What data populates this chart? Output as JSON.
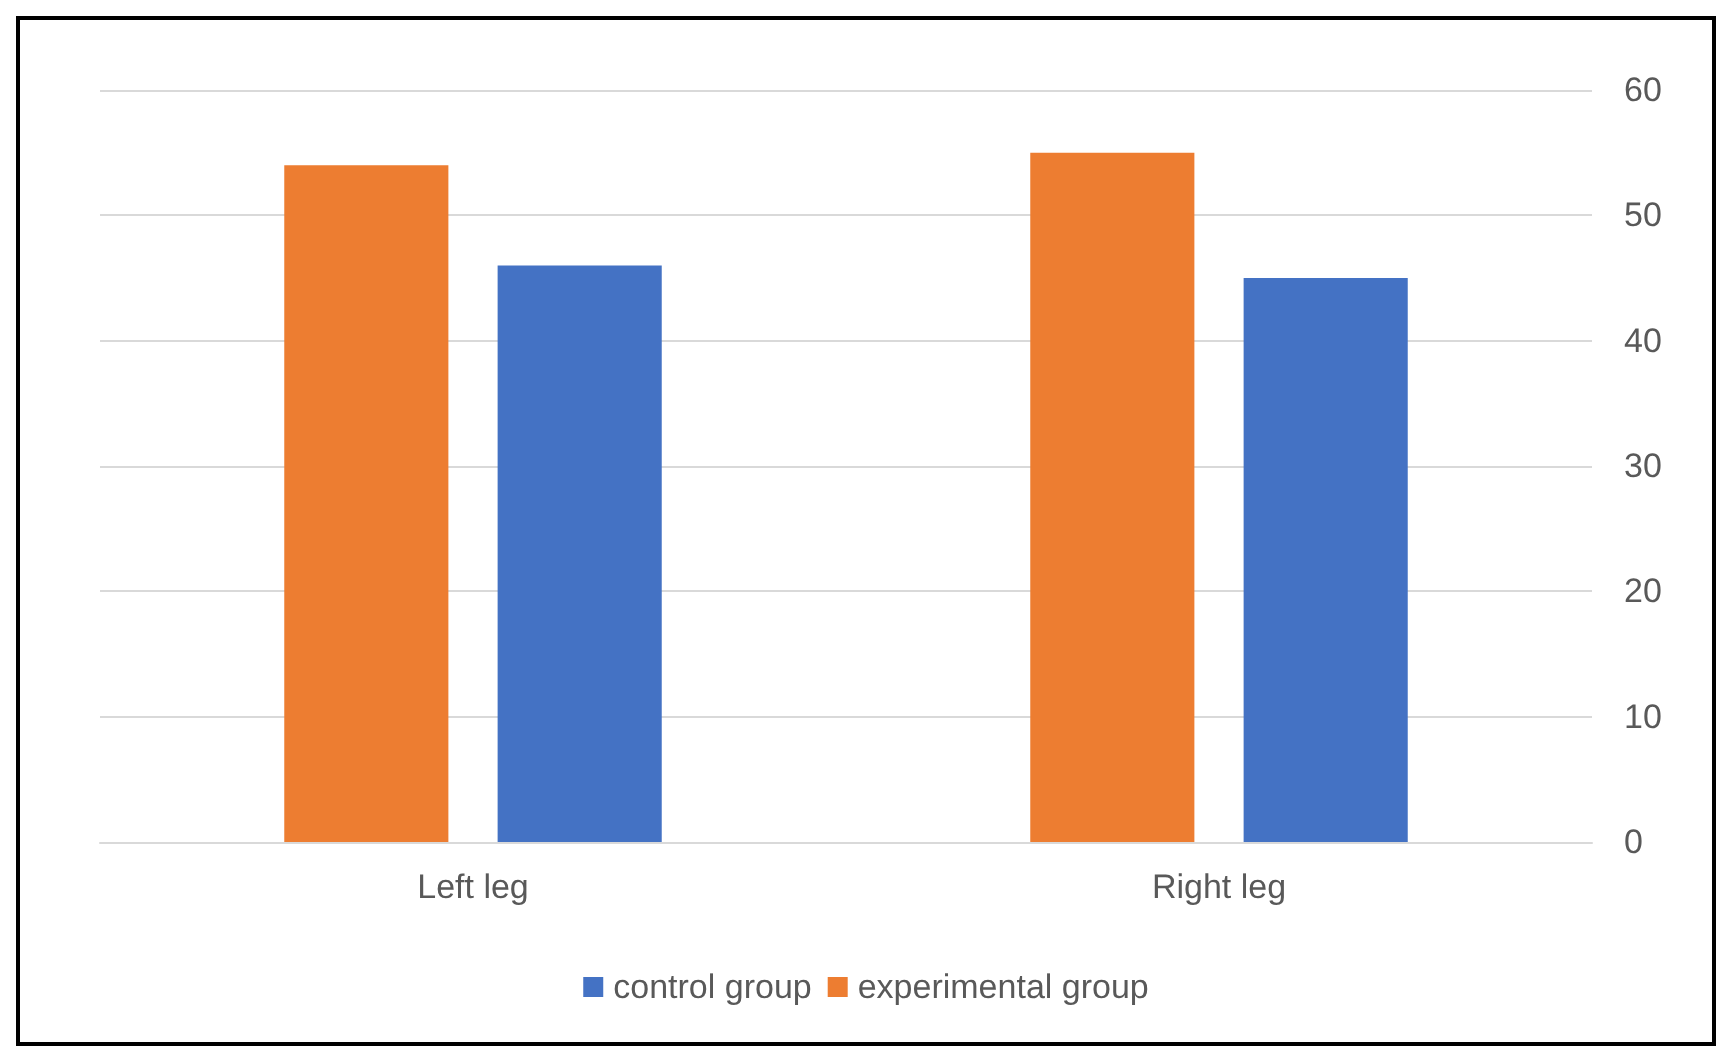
{
  "chart_data": {
    "type": "bar",
    "categories": [
      "Left leg",
      "Right leg"
    ],
    "series": [
      {
        "name": "experimental group",
        "color": "#ed7d31",
        "values": [
          54,
          55
        ]
      },
      {
        "name": "control group",
        "color": "#4472c4",
        "values": [
          46,
          45
        ]
      }
    ],
    "ylim": [
      0,
      60
    ],
    "yticks": [
      0,
      10,
      20,
      30,
      40,
      50,
      60
    ],
    "grid": "y",
    "legend": "bottom"
  }
}
